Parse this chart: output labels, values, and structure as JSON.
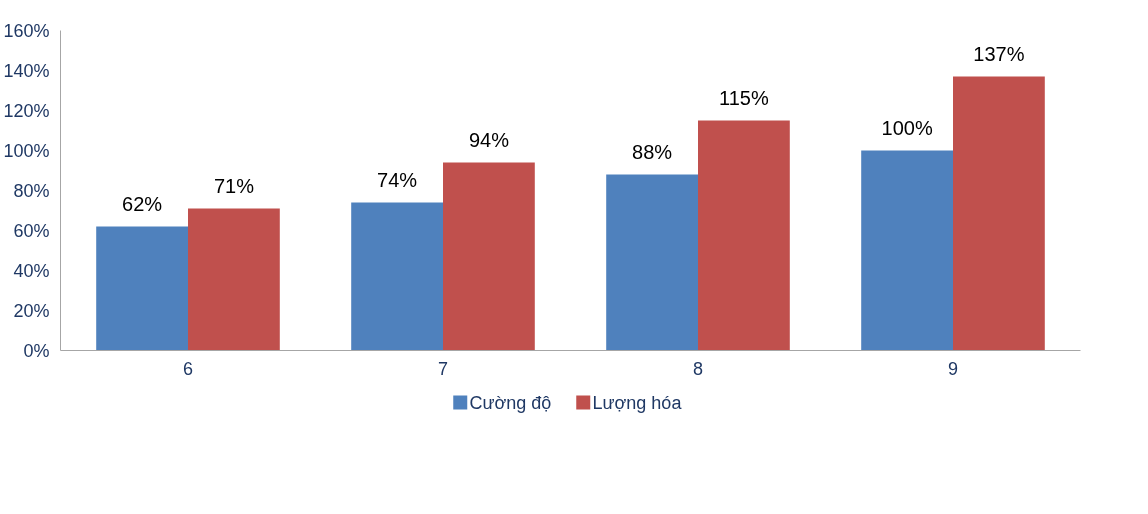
{
  "chart_data": {
    "type": "bar",
    "categories": [
      "6",
      "7",
      "8",
      "9"
    ],
    "series": [
      {
        "name": "Cường độ",
        "color": "#4f81bd",
        "values": [
          62,
          74,
          88,
          100
        ],
        "value_labels": [
          "62%",
          "74%",
          "88%",
          "100%"
        ]
      },
      {
        "name": "Lượng hóa",
        "color": "#c0504d",
        "values": [
          71,
          94,
          115,
          137
        ],
        "value_labels": [
          "71%",
          "94%",
          "115%",
          "137%"
        ]
      }
    ],
    "ylim": [
      0,
      160
    ],
    "yticks": [
      {
        "value": 0,
        "label": "0%"
      },
      {
        "value": 20,
        "label": "20%"
      },
      {
        "value": 40,
        "label": "40%"
      },
      {
        "value": 60,
        "label": "60%"
      },
      {
        "value": 80,
        "label": "80%"
      },
      {
        "value": 100,
        "label": "100%"
      },
      {
        "value": 120,
        "label": "120%"
      },
      {
        "value": 140,
        "label": "140%"
      },
      {
        "value": 160,
        "label": "160%"
      }
    ],
    "grid": false,
    "legend": "bottom"
  }
}
